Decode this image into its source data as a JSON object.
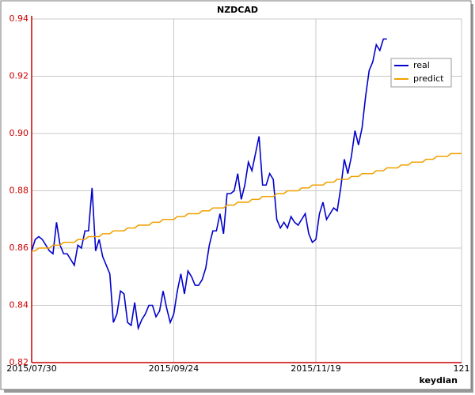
{
  "chart_data": {
    "type": "line",
    "title": "NZDCAD",
    "xlabel": "keydian",
    "x": [
      0,
      1,
      2,
      3,
      4,
      5,
      6,
      7,
      8,
      9,
      10,
      11,
      12,
      13,
      14,
      15,
      16,
      17,
      18,
      19,
      20,
      21,
      22,
      23,
      24,
      25,
      26,
      27,
      28,
      29,
      30,
      31,
      32,
      33,
      34,
      35,
      36,
      37,
      38,
      39,
      40,
      41,
      42,
      43,
      44,
      45,
      46,
      47,
      48,
      49,
      50,
      51,
      52,
      53,
      54,
      55,
      56,
      57,
      58,
      59,
      60,
      61,
      62,
      63,
      64,
      65,
      66,
      67,
      68,
      69,
      70,
      71,
      72,
      73,
      74,
      75,
      76,
      77,
      78,
      79,
      80,
      81,
      82,
      83,
      84,
      85,
      86,
      87,
      88,
      89,
      90,
      91,
      92,
      93,
      94,
      95,
      96,
      97,
      98,
      99,
      100,
      101,
      102,
      103,
      104,
      105,
      106,
      107,
      108,
      109,
      110,
      111,
      112,
      113,
      114,
      115,
      116,
      117,
      118,
      119,
      120,
      121
    ],
    "series": [
      {
        "name": "real",
        "color": "#0000cc",
        "values": [
          0.859,
          0.863,
          0.864,
          0.863,
          0.861,
          0.859,
          0.858,
          0.869,
          0.861,
          0.858,
          0.858,
          0.856,
          0.854,
          0.861,
          0.86,
          0.866,
          0.866,
          0.881,
          0.859,
          0.863,
          0.857,
          0.854,
          0.851,
          0.834,
          0.837,
          0.845,
          0.844,
          0.834,
          0.833,
          0.841,
          0.832,
          0.835,
          0.837,
          0.84,
          0.84,
          0.836,
          0.838,
          0.845,
          0.839,
          0.834,
          0.837,
          0.845,
          0.851,
          0.844,
          0.852,
          0.85,
          0.847,
          0.847,
          0.849,
          0.853,
          0.861,
          0.866,
          0.866,
          0.872,
          0.865,
          0.879,
          0.879,
          0.88,
          0.886,
          0.877,
          0.882,
          0.89,
          0.887,
          0.893,
          0.899,
          0.882,
          0.882,
          0.886,
          0.884,
          0.87,
          0.867,
          0.869,
          0.867,
          0.871,
          0.869,
          0.868,
          0.87,
          0.872,
          0.865,
          0.862,
          0.863,
          0.872,
          0.876,
          0.87,
          0.872,
          0.874,
          0.873,
          0.881,
          0.891,
          0.886,
          0.892,
          0.901,
          0.896,
          0.902,
          0.913,
          0.922,
          0.925,
          0.931,
          0.929,
          0.933,
          0.933,
          null,
          null,
          null,
          null,
          null,
          null,
          null,
          null,
          null,
          null,
          null,
          null,
          null,
          null,
          null,
          null,
          null,
          null,
          null,
          null,
          null
        ]
      },
      {
        "name": "predict",
        "color": "#f0a000",
        "values": [
          0.859,
          0.859,
          0.86,
          0.86,
          0.86,
          0.86,
          0.861,
          0.861,
          0.861,
          0.862,
          0.862,
          0.862,
          0.862,
          0.863,
          0.863,
          0.863,
          0.864,
          0.864,
          0.864,
          0.864,
          0.865,
          0.865,
          0.865,
          0.866,
          0.866,
          0.866,
          0.866,
          0.867,
          0.867,
          0.867,
          0.868,
          0.868,
          0.868,
          0.868,
          0.869,
          0.869,
          0.869,
          0.87,
          0.87,
          0.87,
          0.87,
          0.871,
          0.871,
          0.871,
          0.872,
          0.872,
          0.872,
          0.872,
          0.873,
          0.873,
          0.873,
          0.874,
          0.874,
          0.874,
          0.874,
          0.875,
          0.875,
          0.875,
          0.876,
          0.876,
          0.876,
          0.876,
          0.877,
          0.877,
          0.877,
          0.878,
          0.878,
          0.878,
          0.878,
          0.879,
          0.879,
          0.879,
          0.88,
          0.88,
          0.88,
          0.88,
          0.881,
          0.881,
          0.881,
          0.882,
          0.882,
          0.882,
          0.882,
          0.883,
          0.883,
          0.883,
          0.884,
          0.884,
          0.884,
          0.884,
          0.885,
          0.885,
          0.885,
          0.886,
          0.886,
          0.886,
          0.886,
          0.887,
          0.887,
          0.887,
          0.888,
          0.888,
          0.888,
          0.888,
          0.889,
          0.889,
          0.889,
          0.89,
          0.89,
          0.89,
          0.89,
          0.891,
          0.891,
          0.891,
          0.892,
          0.892,
          0.892,
          0.892,
          0.893,
          0.893,
          0.893,
          0.893
        ]
      }
    ],
    "xlim": [
      0,
      121
    ],
    "xticks": [
      {
        "value": 0,
        "label": "2015/07/30"
      },
      {
        "value": 40,
        "label": "2015/09/24"
      },
      {
        "value": 80,
        "label": "2015/11/19"
      },
      121
    ],
    "ylim": [
      0.82,
      0.94
    ],
    "yticks": [
      0.82,
      0.84,
      0.86,
      0.88,
      {
        "value": 0.9,
        "label": "0.90"
      },
      0.92,
      0.94
    ],
    "grid": true,
    "legend": "top-right"
  }
}
